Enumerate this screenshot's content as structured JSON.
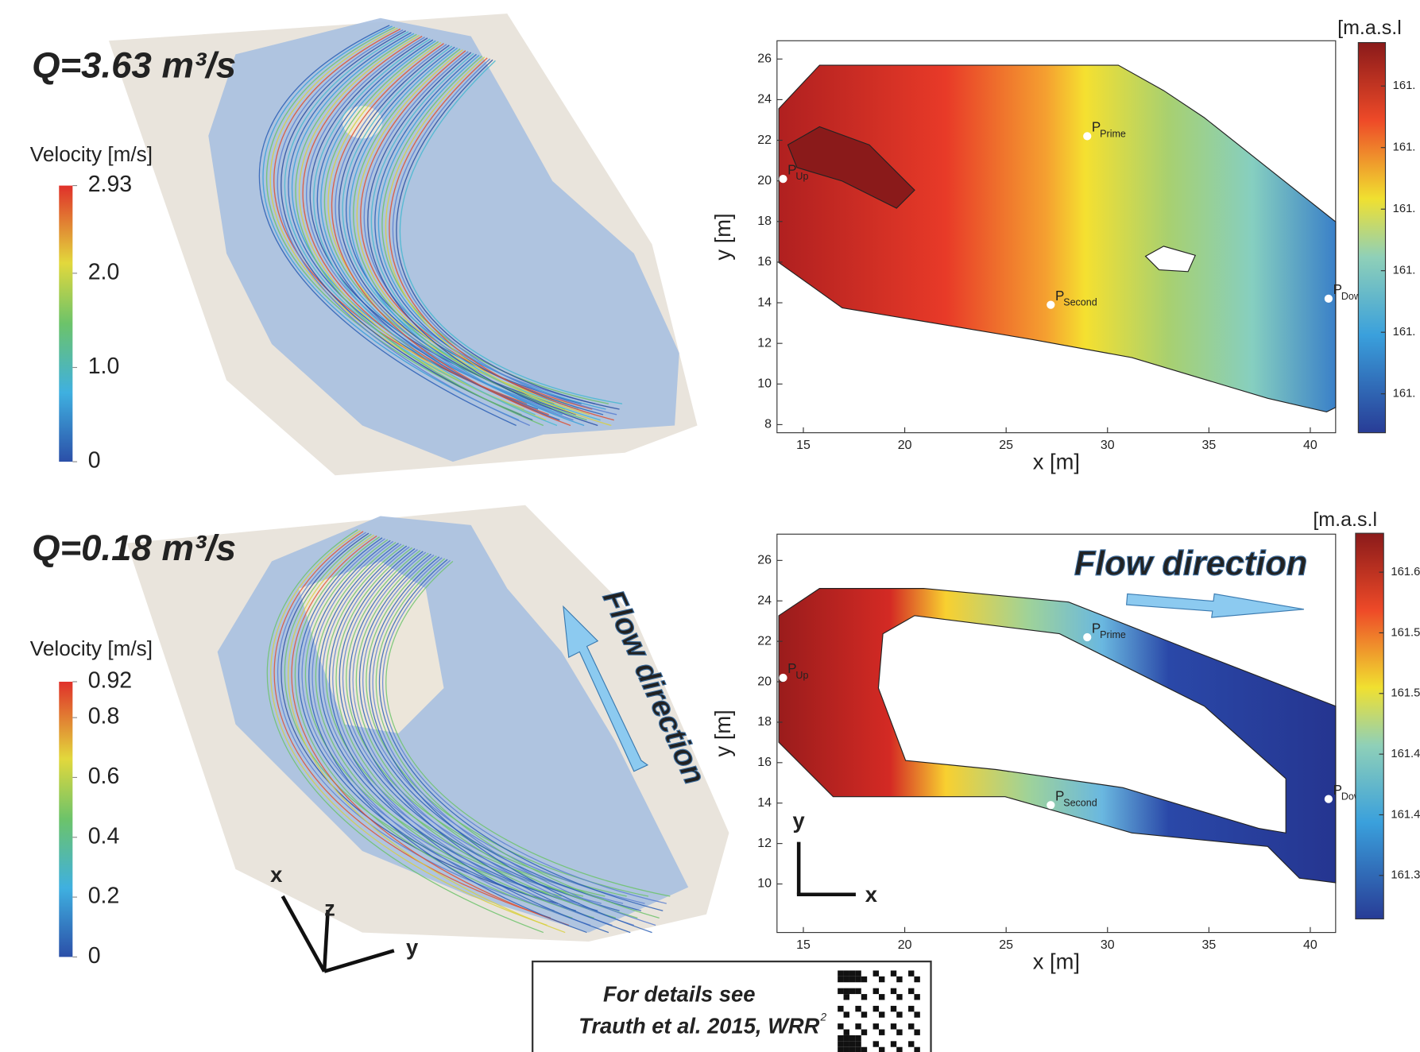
{
  "chart_data": [
    {
      "type": "streamlines",
      "title": "Q=3.63 m³/s",
      "colorbar": {
        "label": "Velocity [m/s]",
        "lim": [
          0,
          2.93
        ],
        "ticks": [
          2.93,
          {
            "value": 2,
            "label": "2.0"
          },
          {
            "value": 1,
            "label": "1.0"
          },
          0
        ]
      }
    },
    {
      "type": "contour",
      "xlabel": "x [m]",
      "ylabel": "y [m]",
      "xlim": [
        13.7,
        41.25
      ],
      "ylim": [
        7.6,
        26.9
      ],
      "xticks": [
        15,
        20,
        25,
        30,
        35,
        40
      ],
      "yticks": [
        8,
        10,
        12,
        14,
        16,
        18,
        20,
        22,
        24,
        26
      ],
      "points": [
        {
          "label": "P",
          "sub": "Up",
          "x": 14,
          "y": 20.1
        },
        {
          "label": "P",
          "sub": "Prime",
          "x": 29,
          "y": 22.2
        },
        {
          "label": "P",
          "sub": "Second",
          "x": 27.2,
          "y": 13.9
        },
        {
          "label": "P",
          "sub": "Down",
          "x": 40.9,
          "y": 14.2
        }
      ],
      "colorbar": {
        "label": "[m.a.s.l",
        "tick_labels": [
          "161.",
          "161.",
          "161.",
          "161.",
          "161.",
          "161."
        ]
      }
    },
    {
      "type": "streamlines",
      "title": "Q=0.18 m³/s",
      "annotation": "Flow direction",
      "axis_labels": [
        "x",
        "z",
        "y"
      ],
      "colorbar": {
        "label": "Velocity [m/s]",
        "lim": [
          0,
          0.92
        ],
        "ticks": [
          0.92,
          0.8,
          0.6,
          0.4,
          0.2,
          0
        ]
      }
    },
    {
      "type": "contour",
      "xlabel": "x [m]",
      "ylabel": "y [m]",
      "xlim": [
        13.7,
        41.25
      ],
      "ylim": [
        7.6,
        27.3
      ],
      "xticks": [
        15,
        20,
        25,
        30,
        35,
        40
      ],
      "yticks": [
        10,
        12,
        14,
        16,
        18,
        20,
        22,
        24,
        26
      ],
      "annotation": "Flow direction",
      "axis_labels": [
        "y",
        "x"
      ],
      "points": [
        {
          "label": "P",
          "sub": "Up",
          "x": 14,
          "y": 20.2
        },
        {
          "label": "P",
          "sub": "Prime",
          "x": 29,
          "y": 22.2
        },
        {
          "label": "P",
          "sub": "Second",
          "x": 27.2,
          "y": 13.9
        },
        {
          "label": "P",
          "sub": "Down",
          "x": 40.9,
          "y": 14.2
        }
      ],
      "colorbar": {
        "label": "[m.a.s.l",
        "tick_labels": [
          "161.6",
          "161.5",
          "161.5",
          "161.4",
          "161.4",
          "161.3"
        ]
      }
    }
  ],
  "note": {
    "line1": "For details see",
    "line2": "Trauth et al. 2015, WRR",
    "superscript": "2"
  }
}
